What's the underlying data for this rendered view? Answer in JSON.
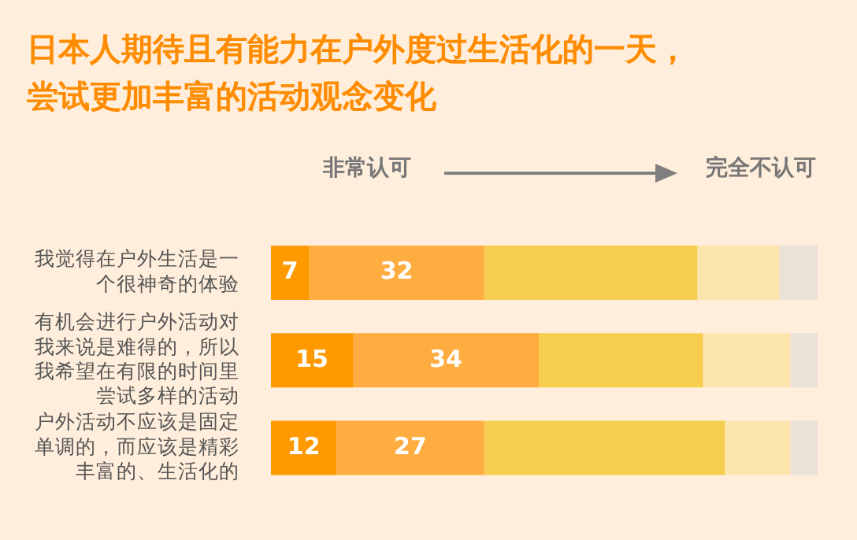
{
  "chart_data": {
    "type": "bar",
    "orientation": "horizontal",
    "stacked": true,
    "title": "日本人期待且有能力在户外度过生活化的一天，尝试更加丰富的活动观念变化",
    "categories": [
      "我觉得在户外生活是一个很神奇的体验",
      "有机会进行户外活动对我来说是难得的，所以我希望在有限的时间里尝试多样的活动",
      "户外活动不应该是固定单调的，而应该是精彩丰富的、生活化的"
    ],
    "series": [
      {
        "color": "#ff9900",
        "values": [
          7,
          15,
          12
        ],
        "value_labels": [
          "7",
          "15",
          "12"
        ]
      },
      {
        "color": "#ffad40",
        "values": [
          32,
          34,
          27
        ],
        "value_labels": [
          "32",
          "34",
          "27"
        ]
      },
      {
        "color": "#f6cd4f",
        "values": [
          39,
          30,
          44
        ]
      },
      {
        "color": "#fce6ad",
        "values": [
          15,
          16,
          12
        ]
      },
      {
        "color": "#ebe1d6",
        "values": [
          7,
          5,
          5
        ]
      }
    ],
    "xlim": [
      0,
      100
    ],
    "tick_labels": "y",
    "legend": false,
    "annotations": [
      "非常认可",
      "完全不认可"
    ]
  }
}
